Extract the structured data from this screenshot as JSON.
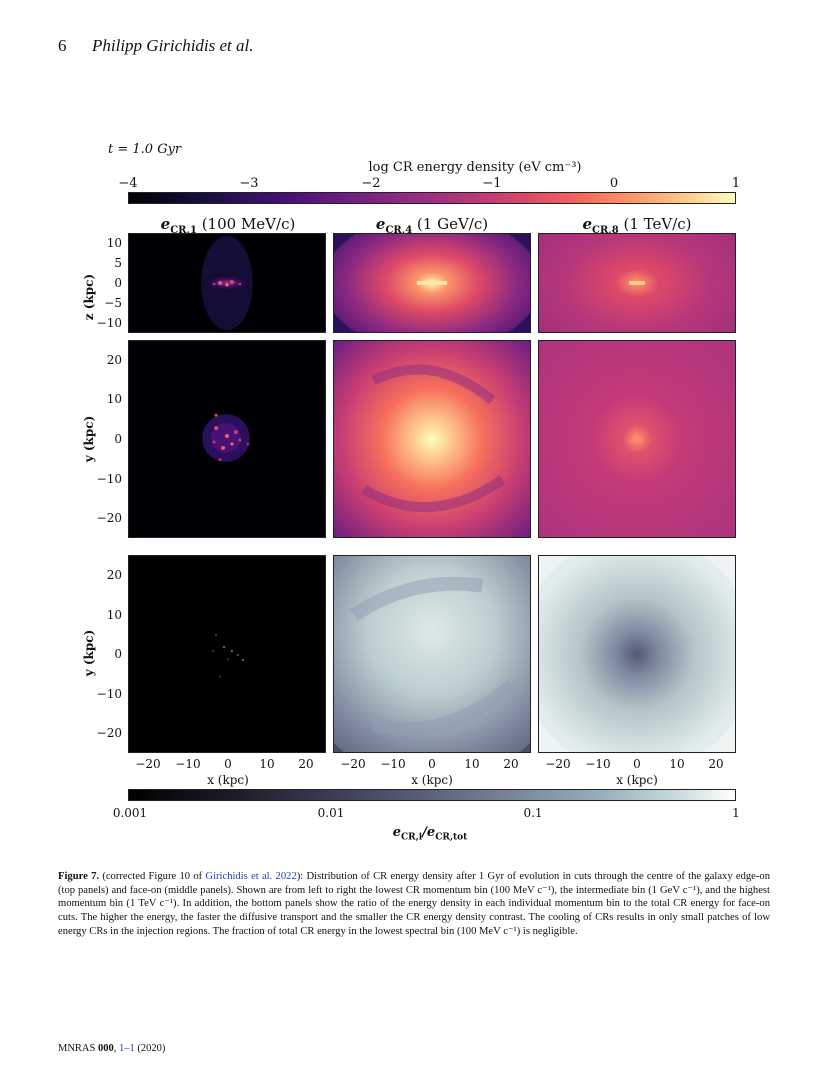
{
  "header": {
    "page_number": "6",
    "running_title": "Philipp Girichidis et al."
  },
  "figure": {
    "time_label": "t = 1.0 Gyr",
    "colorbar_top": {
      "title": "log CR energy density (eV cm⁻³)",
      "ticks": [
        "−4",
        "−3",
        "−2",
        "−1",
        "0",
        "1"
      ],
      "colormap": "magma"
    },
    "columns": [
      {
        "title_main": "e",
        "title_sub": "CR,1",
        "title_rest": " (100 MeV/c)"
      },
      {
        "title_main": "e",
        "title_sub": "CR,4",
        "title_rest": " (1 GeV/c)"
      },
      {
        "title_main": "e",
        "title_sub": "CR,8",
        "title_rest": " (1 TeV/c)"
      }
    ],
    "row_top": {
      "ylabel": "z (kpc)",
      "yticks": [
        "10",
        "5",
        "0",
        "−5",
        "−10"
      ]
    },
    "row_mid": {
      "ylabel": "y (kpc)",
      "yticks": [
        "20",
        "10",
        "0",
        "−10",
        "−20"
      ]
    },
    "row_bot": {
      "ylabel": "y (kpc)",
      "yticks": [
        "20",
        "10",
        "0",
        "−10",
        "−20"
      ]
    },
    "xticks": [
      "−20",
      "−10",
      "0",
      "10",
      "20"
    ],
    "xlabel": "x (kpc)",
    "colorbar_bottom": {
      "ticks": [
        "0.001",
        "0.01",
        "0.1",
        "1"
      ],
      "label": "e_CR,i / e_CR,tot",
      "label_main": "e",
      "label_sub1": "CR,i",
      "label_mid": "/e",
      "label_sub2": "CR,tot",
      "colormap": "bone"
    }
  },
  "caption": {
    "label": "Figure 7.",
    "text_a": " (corrected Figure 10 of ",
    "citation": "Girichidis et al. 2022",
    "text_b": "): Distribution of CR energy density after 1 Gyr of evolution in cuts through the centre of the galaxy edge-on (top panels) and face-on (middle panels). Shown are from left to right the lowest CR momentum bin (100 MeV c⁻¹), the intermediate bin (1 GeV c⁻¹), and the highest momentum bin (1 TeV c⁻¹). In addition, the bottom panels show the ratio of the energy density in each individual momentum bin to the total CR energy for face-on cuts. The higher the energy, the faster the diffusive transport and the smaller the CR energy density contrast. The cooling of CRs results in only small patches of low energy CRs in the injection regions. The fraction of total CR energy in the lowest spectral bin (100 MeV c⁻¹) is negligible."
  },
  "footer": {
    "journal": "MNRAS ",
    "volume": "000",
    "sep": ", ",
    "pages": "1–1",
    "year": " (2020)"
  }
}
